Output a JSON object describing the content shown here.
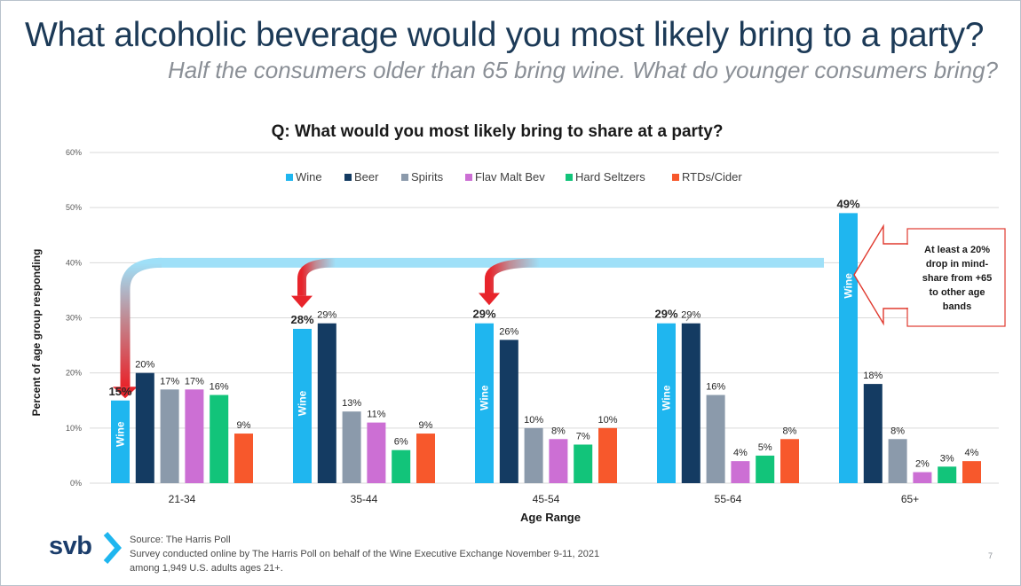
{
  "header": {
    "title": "What alcoholic beverage would you most likely bring to a party?",
    "subtitle": "Half the consumers older than 65 bring wine. What do younger consumers bring?"
  },
  "chart_data": {
    "type": "bar",
    "title": "Q: What would you most likely bring to share at a party?",
    "xlabel": "Age Range",
    "ylabel": "Percent of age group responding",
    "ylim": [
      0,
      60
    ],
    "yticks": [
      "0%",
      "10%",
      "20%",
      "30%",
      "40%",
      "50%",
      "60%"
    ],
    "grid": true,
    "legend_position": "top",
    "categories": [
      "21-34",
      "35-44",
      "45-54",
      "55-64",
      "65+"
    ],
    "series": [
      {
        "name": "Wine",
        "color": "#1fb6ef",
        "values": [
          15,
          28,
          29,
          29,
          49
        ],
        "labels": [
          "15%",
          "28%",
          "29%",
          "29%",
          "49%"
        ],
        "bar_text": "Wine"
      },
      {
        "name": "Beer",
        "color": "#143b62",
        "values": [
          20,
          29,
          26,
          29,
          18
        ],
        "labels": [
          "20%",
          "29%",
          "26%",
          "29%",
          "18%"
        ]
      },
      {
        "name": "Spirits",
        "color": "#8b9aab",
        "values": [
          17,
          13,
          10,
          16,
          8
        ],
        "labels": [
          "17%",
          "13%",
          "10%",
          "16%",
          "8%"
        ]
      },
      {
        "name": "Flav Malt Bev",
        "color": "#cc6fd4",
        "values": [
          17,
          11,
          8,
          4,
          2
        ],
        "labels": [
          "17%",
          "11%",
          "8%",
          "4%",
          "2%"
        ]
      },
      {
        "name": "Hard Seltzers",
        "color": "#12c47a",
        "values": [
          16,
          6,
          7,
          5,
          3
        ],
        "labels": [
          "16%",
          "6%",
          "7%",
          "5%",
          "3%"
        ]
      },
      {
        "name": "RTDs/Cider",
        "color": "#f7582c",
        "values": [
          9,
          9,
          10,
          8,
          4
        ],
        "labels": [
          "9%",
          "9%",
          "10%",
          "8%",
          "4%"
        ]
      }
    ],
    "annotation": {
      "lines": [
        "At least a 20%",
        "drop in mind-",
        "share from +65",
        "to other age",
        "bands"
      ],
      "reference_value": 40
    }
  },
  "footer": {
    "logo": "svb",
    "source": "Source: The Harris Poll",
    "note1": "Survey conducted online by The Harris Poll on behalf of the Wine Executive Exchange November 9-11, 2021",
    "note2": "among 1,949 U.S. adults ages 21+.",
    "page": "7"
  }
}
